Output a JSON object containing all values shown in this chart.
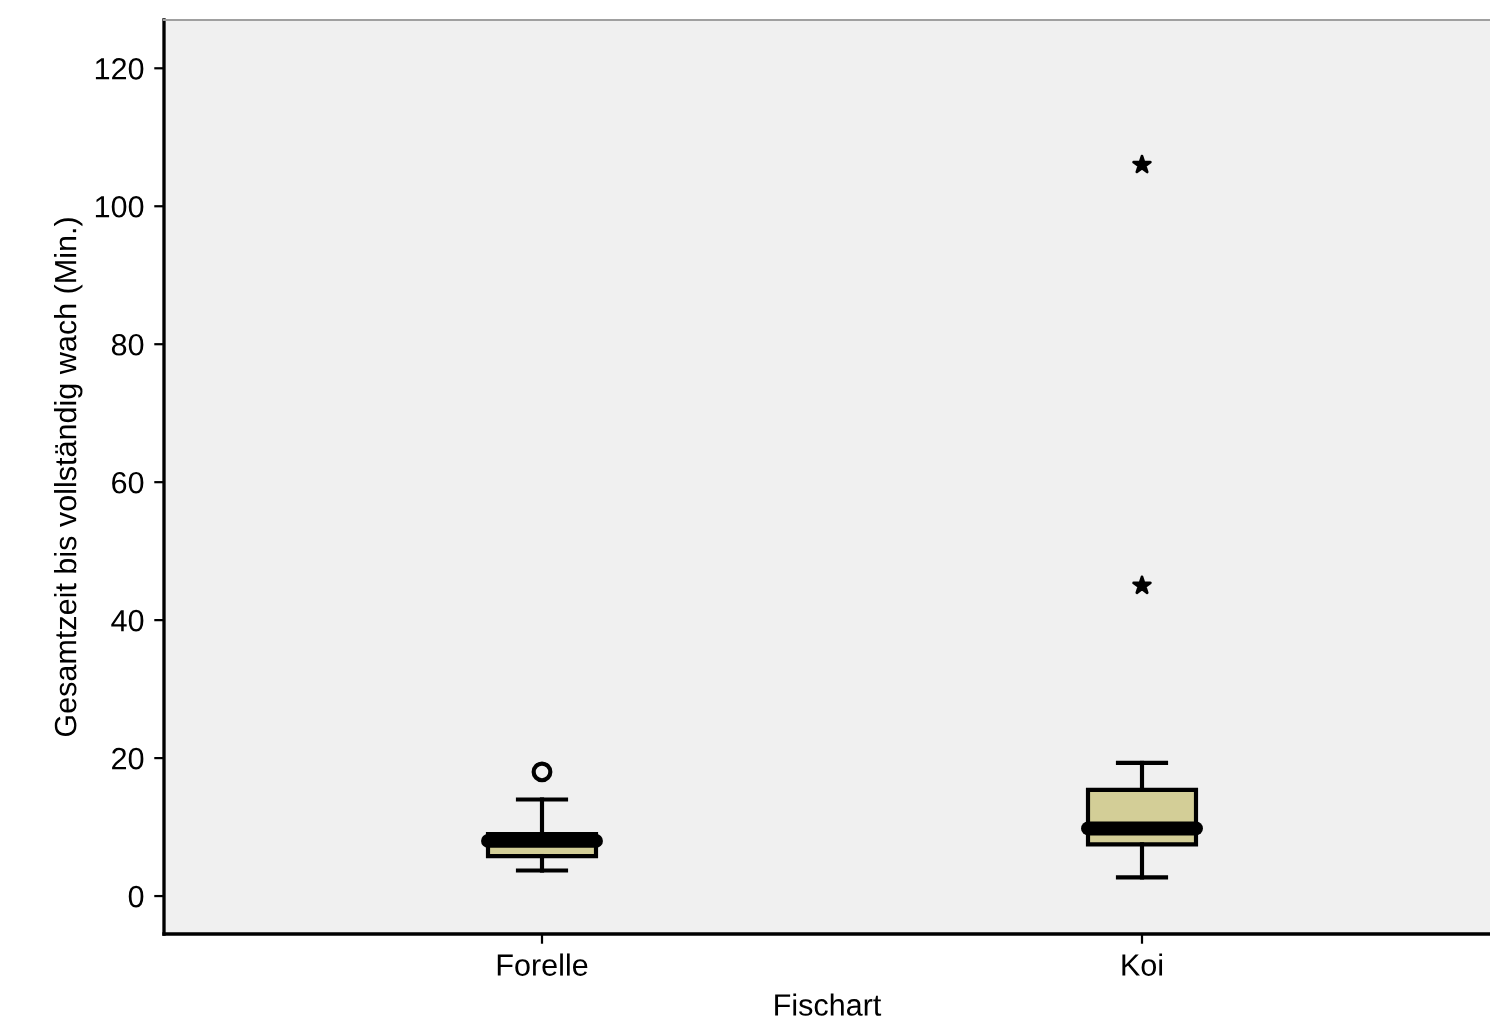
{
  "chart_data": {
    "type": "box",
    "xlabel": "Fischart",
    "ylabel": "Gesamtzeit bis vollständig wach (Min.)",
    "categories": [
      "Forelle",
      "Koi"
    ],
    "boxes": [
      {
        "low": 3.7,
        "q1": 5.8,
        "median": 8,
        "q3": 9,
        "high": 14,
        "outliers": [
          18
        ]
      },
      {
        "low": 2.7,
        "q1": 7.5,
        "median": 9.8,
        "q3": 15.4,
        "high": 19.3
      }
    ],
    "color": "#d3ce97",
    "series": [
      {
        "type": "scatter",
        "x": [
          "Koi",
          "Koi"
        ],
        "values": [
          106,
          45
        ],
        "color": "#000000",
        "marker": "star"
      }
    ],
    "ylim": [
      -5.5,
      127
    ],
    "yticks": [
      0,
      20,
      40,
      60,
      80,
      100,
      120
    ],
    "grid": false
  }
}
